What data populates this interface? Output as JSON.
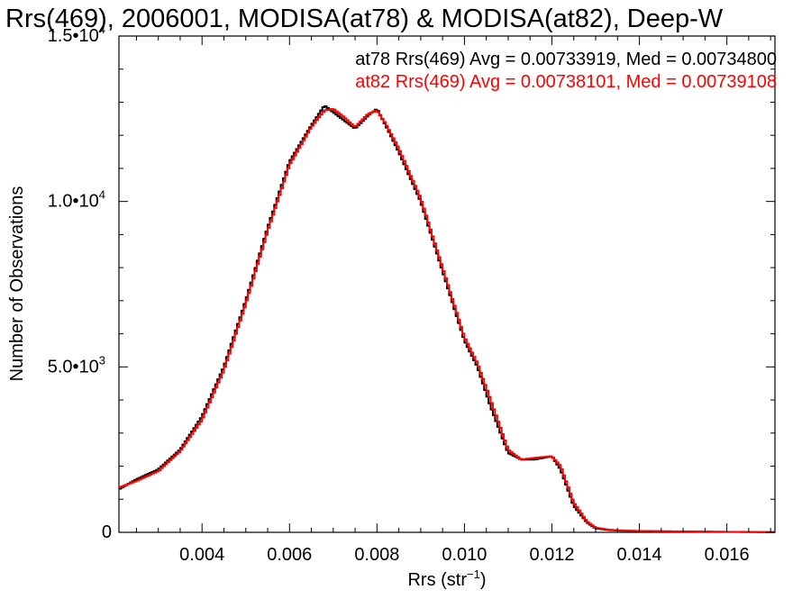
{
  "chart_data": {
    "type": "line",
    "title": "Rrs(469), 2006001, MODISA(at78) & MODISA(at82), Deep-W",
    "xlabel": "Rrs (str⁻¹)",
    "xlabel_main": "Rrs (str",
    "xlabel_sup": "−1",
    "xlabel_close": ")",
    "ylabel": "Number of Observations",
    "xlim": [
      0.0021,
      0.0171
    ],
    "ylim": [
      0,
      15000
    ],
    "x_ticks": [
      0.004,
      0.006,
      0.008,
      0.01,
      0.012,
      0.014,
      0.016
    ],
    "x_tick_labels": [
      "0.004",
      "0.006",
      "0.008",
      "0.010",
      "0.012",
      "0.014",
      "0.016"
    ],
    "y_ticks": [
      {
        "value": 0,
        "mant": "0",
        "exp": ""
      },
      {
        "value": 5000,
        "mant": "5.0•10",
        "exp": "3"
      },
      {
        "value": 10000,
        "mant": "1.0•10",
        "exp": "4"
      },
      {
        "value": 15000,
        "mant": "1.5•10",
        "exp": "4"
      }
    ],
    "grid": false,
    "legend_position": "top-right",
    "annotations": [
      {
        "text": "at78 Rrs(469) Avg = 0.00733919, Med = 0.00734800",
        "color": "#000000"
      },
      {
        "text": "at82 Rrs(469) Avg = 0.00738101, Med = 0.00739108",
        "color": "#ff0000"
      }
    ],
    "x": [
      0.0021,
      0.0025,
      0.003,
      0.0035,
      0.004,
      0.0045,
      0.005,
      0.0055,
      0.006,
      0.0065,
      0.0068,
      0.007,
      0.0072,
      0.0075,
      0.0078,
      0.008,
      0.0082,
      0.0085,
      0.009,
      0.0095,
      0.01,
      0.0103,
      0.0106,
      0.011,
      0.0113,
      0.0116,
      0.012,
      0.0122,
      0.0125,
      0.0128,
      0.013,
      0.0133,
      0.0136,
      0.014,
      0.015,
      0.016,
      0.0171
    ],
    "series": [
      {
        "color": "#000000",
        "values": [
          1300,
          1600,
          1900,
          2500,
          3500,
          5000,
          7000,
          9200,
          11200,
          12300,
          12900,
          12700,
          12500,
          12200,
          12600,
          12800,
          12300,
          11500,
          10000,
          7900,
          5800,
          5000,
          3800,
          2400,
          2200,
          2200,
          2300,
          1900,
          800,
          300,
          120,
          70,
          50,
          40,
          25,
          15,
          5
        ]
      },
      {
        "color": "#ff0000",
        "values": [
          1350,
          1550,
          1850,
          2450,
          3400,
          4900,
          6900,
          9100,
          11100,
          12250,
          12750,
          12800,
          12600,
          12250,
          12650,
          12750,
          12350,
          11600,
          10100,
          8000,
          5900,
          5100,
          4000,
          2500,
          2200,
          2250,
          2300,
          2000,
          900,
          330,
          140,
          80,
          55,
          40,
          25,
          15,
          5
        ]
      }
    ]
  }
}
